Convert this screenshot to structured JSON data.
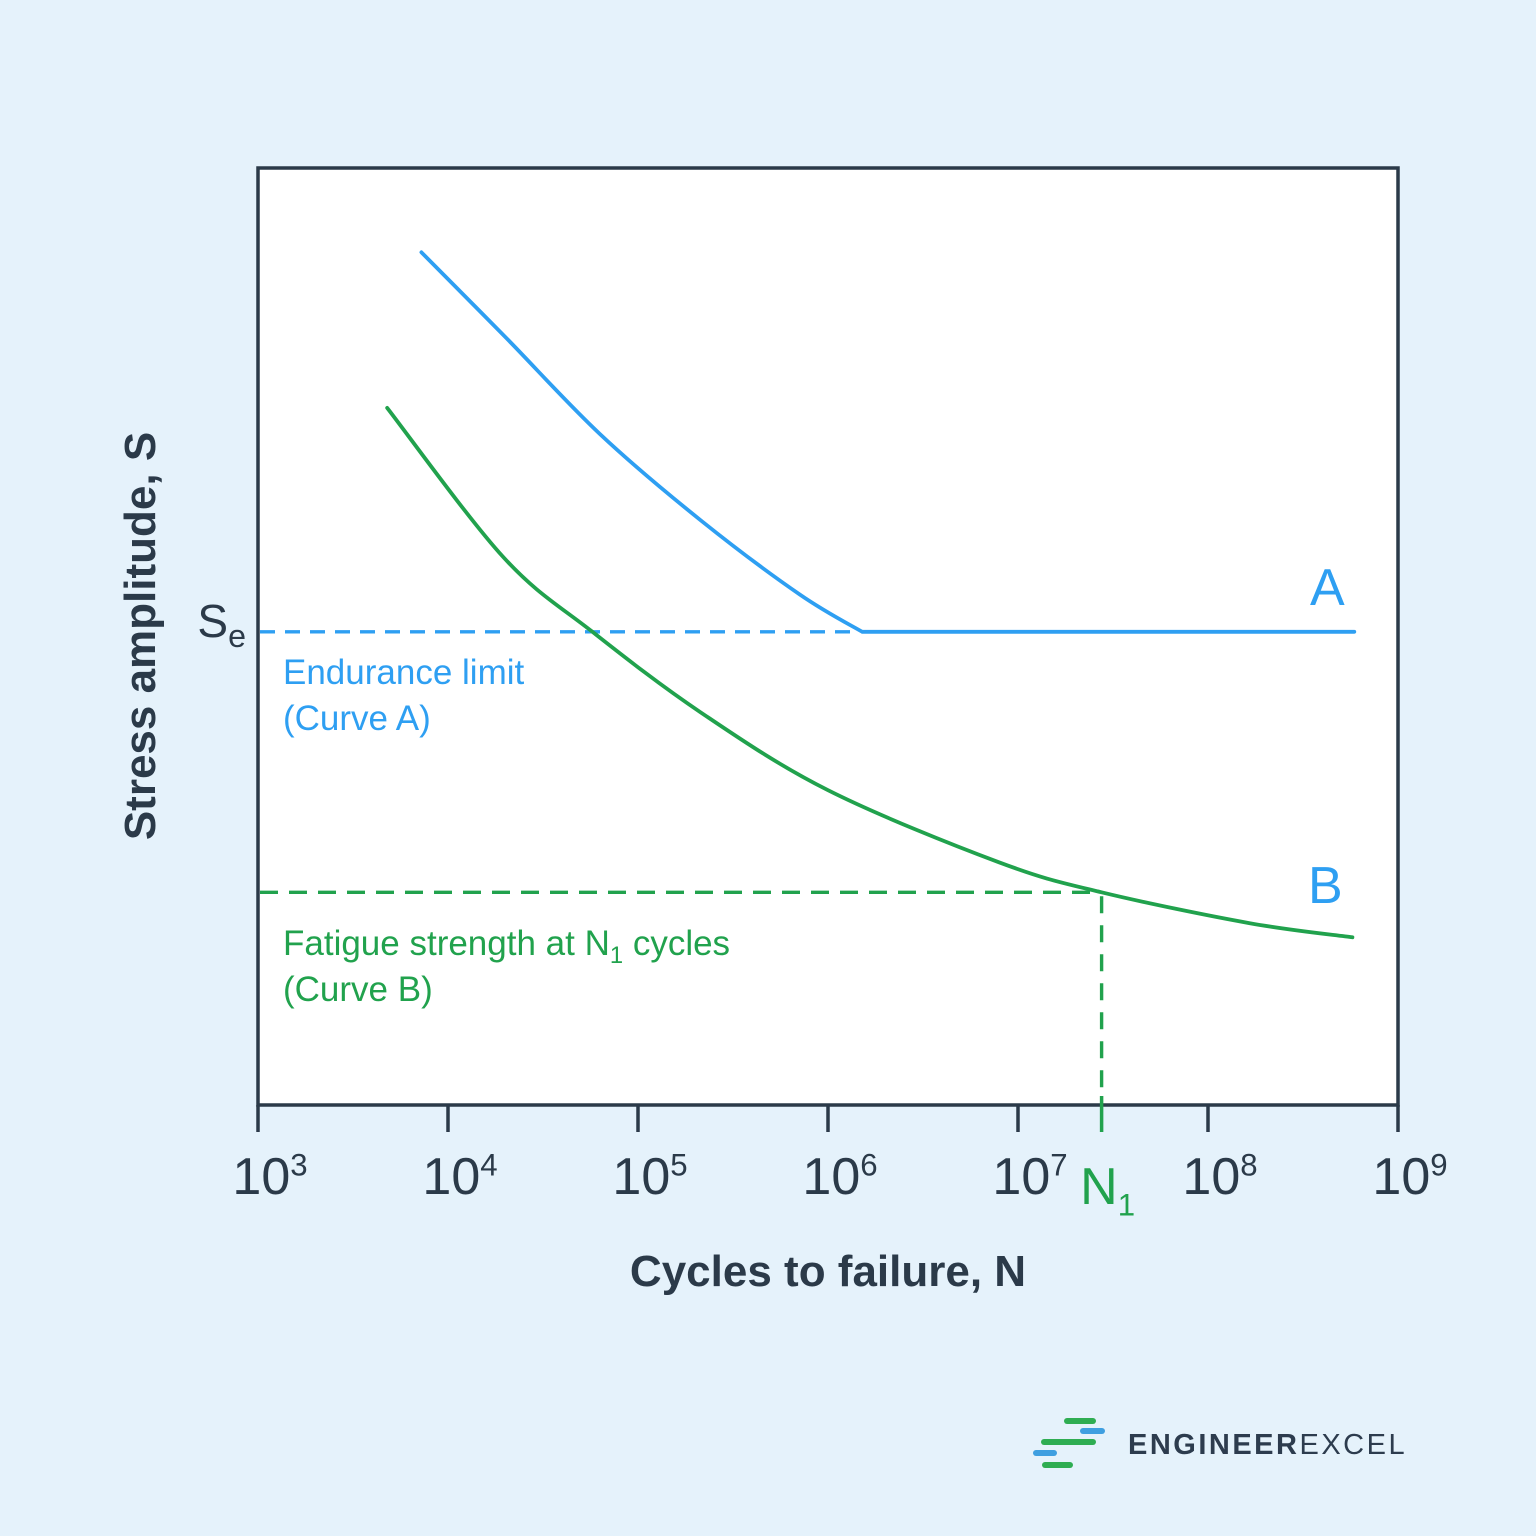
{
  "theme": {
    "background": "#e5f2fb",
    "plot_background": "#ffffff",
    "axis_color": "#2b3a49",
    "text_dark": "#2b3a49",
    "blue": "#2e9ff2",
    "green": "#21a24d",
    "logo_text": "#2d3c4e",
    "logo_green": "#2ead52",
    "logo_blue": "#3f9fe0"
  },
  "chart_data": {
    "type": "line",
    "title": "",
    "xlabel": "Cycles to failure, N",
    "ylabel": "Stress amplitude, S",
    "x_scale": "log10",
    "xlim_log10": [
      3,
      9
    ],
    "ylim": [
      0,
      1
    ],
    "grid": false,
    "legend_position": "none",
    "x_ticks": [
      {
        "base": "10",
        "exp": "3"
      },
      {
        "base": "10",
        "exp": "4"
      },
      {
        "base": "10",
        "exp": "5"
      },
      {
        "base": "10",
        "exp": "6"
      },
      {
        "base": "10",
        "exp": "7"
      },
      {
        "base": "10",
        "exp": "8"
      },
      {
        "base": "10",
        "exp": "9"
      }
    ],
    "series": [
      {
        "name": "Curve A",
        "label": "A",
        "color_key": "blue",
        "points_log10N_vs_S": [
          [
            3.86,
            0.91
          ],
          [
            4.3,
            0.82
          ],
          [
            4.8,
            0.716
          ],
          [
            5.33,
            0.624
          ],
          [
            5.85,
            0.545
          ],
          [
            6.18,
            0.505
          ]
        ],
        "flat_to_log10": 8.77
      },
      {
        "name": "Curve B",
        "label": "B",
        "color_key": "green",
        "points_log10N_vs_S": [
          [
            3.68,
            0.744
          ],
          [
            4.29,
            0.585
          ],
          [
            4.76,
            0.505
          ],
          [
            5.33,
            0.419
          ],
          [
            6.0,
            0.336
          ],
          [
            6.9,
            0.259
          ],
          [
            7.44,
            0.227
          ],
          [
            8.22,
            0.194
          ],
          [
            8.76,
            0.179
          ]
        ]
      }
    ],
    "annotations": {
      "endurance": {
        "label_line1": "Endurance limit",
        "label_line2": "(Curve A)",
        "axis_label": {
          "base": "S",
          "sub": "e"
        },
        "value_rel": 0.505,
        "dash_end_log10": 6.14
      },
      "fatigue": {
        "label_pre": "Fatigue strength at N",
        "label_sub": "1",
        "label_post": " cycles",
        "label_line2": "(Curve B)",
        "axis_label": {
          "base": "N",
          "sub": "1"
        },
        "value_rel": 0.227,
        "n1_log10": 7.44
      }
    }
  },
  "logo": {
    "bold": "ENGINEER",
    "light": "EXCEL"
  }
}
